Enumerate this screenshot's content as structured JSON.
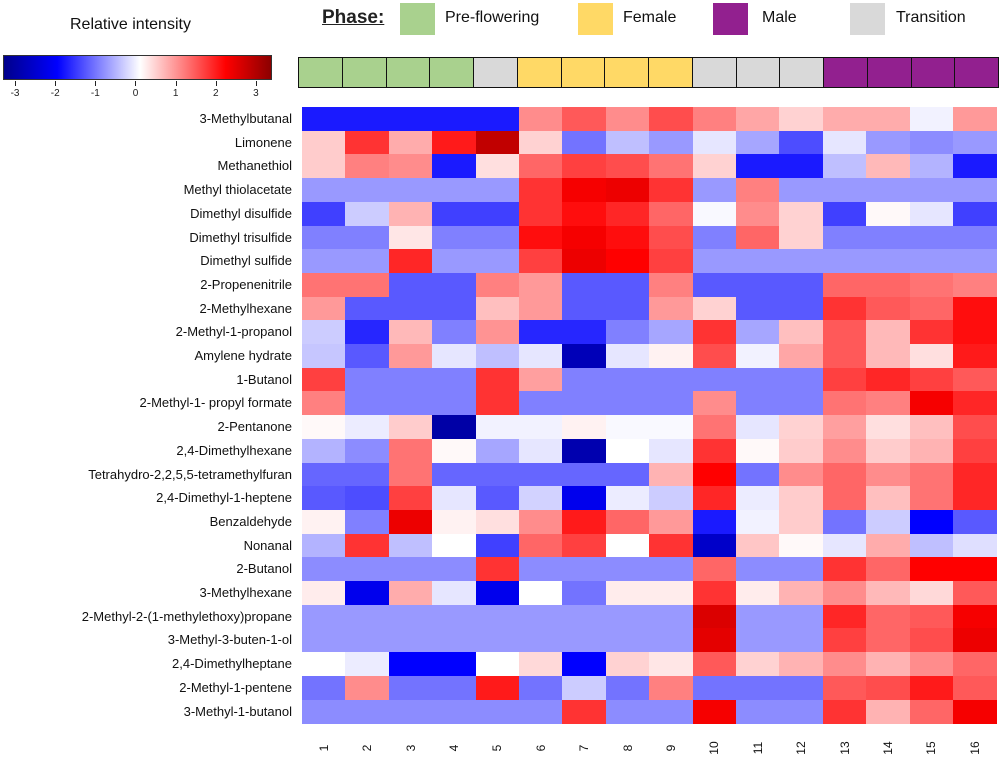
{
  "colorbar": {
    "title": "Relative intensity",
    "ticks": [
      "-3",
      "-2",
      "-1",
      "0",
      "1",
      "2",
      "3"
    ],
    "range": [
      -3.3,
      3.4
    ],
    "colors": {
      "min": "#00008b",
      "neg": "#0000ff",
      "zero": "#ffffff",
      "pos": "#ff0000",
      "max": "#8b0000"
    }
  },
  "phase_legend": {
    "title": "Phase:",
    "items": [
      {
        "label": "Pre-flowering",
        "color": "#a9d18e"
      },
      {
        "label": "Female",
        "color": "#ffd966"
      },
      {
        "label": "Male",
        "color": "#92208f"
      },
      {
        "label": "Transition",
        "color": "#d9d9d9"
      }
    ]
  },
  "chart_data": {
    "type": "heatmap",
    "categories": [
      "1",
      "2",
      "3",
      "4",
      "5",
      "6",
      "7",
      "8",
      "9",
      "10",
      "11",
      "12",
      "13",
      "14",
      "15",
      "16"
    ],
    "column_phases": [
      "Pre-flowering",
      "Pre-flowering",
      "Pre-flowering",
      "Pre-flowering",
      "Transition",
      "Female",
      "Female",
      "Female",
      "Female",
      "Transition",
      "Transition",
      "Transition",
      "Male",
      "Male",
      "Male",
      "Male"
    ],
    "rows": [
      "3-Methylbutanal",
      "Limonene",
      "Methanethiol",
      "Methyl thiolacetate",
      "Dimethyl disulfide",
      "Dimethyl trisulfide",
      "Dimethyl sulfide",
      "2-Propenenitrile",
      "2-Methylhexane",
      "2-Methyl-1-propanol",
      "Amylene hydrate",
      "1-Butanol",
      "2-Methyl-1- propyl formate",
      "2-Pentanone",
      "2,4-Dimethylhexane",
      "Tetrahydro-2,2,5,5-tetramethylfuran",
      "2,4-Dimethyl-1-heptene",
      "Benzaldehyde",
      "Nonanal",
      "2-Butanol",
      "3-Methylhexane",
      "2-Methyl-2-(1-methylethoxy)propane",
      "3-Methyl-3-buten-1-ol",
      "2,4-Dimethylheptane",
      "2-Methyl-1-pentene",
      "3-Methyl-1-butanol"
    ],
    "values": [
      [
        -1.8,
        -1.8,
        -1.8,
        -1.8,
        -1.8,
        0.9,
        1.3,
        0.9,
        1.4,
        1.0,
        0.7,
        0.35,
        0.65,
        0.65,
        -0.1,
        0.8
      ],
      [
        0.4,
        1.6,
        0.65,
        1.8,
        2.7,
        0.35,
        -1.1,
        -0.5,
        -0.8,
        -0.2,
        -0.7,
        -1.4,
        -0.2,
        -0.8,
        -0.9,
        -0.8
      ],
      [
        0.4,
        1.0,
        0.9,
        -1.8,
        0.25,
        1.2,
        1.5,
        1.4,
        1.1,
        0.35,
        -1.8,
        -1.8,
        -0.5,
        0.55,
        -0.6,
        -1.8
      ],
      [
        -0.8,
        -0.8,
        -0.8,
        -0.8,
        -0.8,
        1.6,
        2.1,
        2.2,
        1.6,
        -0.8,
        1.0,
        -0.8,
        -0.8,
        -0.8,
        -0.8,
        -0.8
      ],
      [
        -1.5,
        -0.4,
        0.6,
        -1.5,
        -1.5,
        1.6,
        1.9,
        1.7,
        1.2,
        -0.05,
        0.9,
        0.35,
        -1.5,
        0.05,
        -0.2,
        -1.5
      ],
      [
        -1.0,
        -1.0,
        0.2,
        -1.0,
        -1.0,
        1.9,
        2.1,
        1.9,
        1.4,
        -1.0,
        1.2,
        0.35,
        -1.0,
        -1.0,
        -1.0,
        -1.0
      ],
      [
        -0.8,
        -0.8,
        1.7,
        -0.8,
        -0.8,
        1.5,
        2.2,
        2.0,
        1.5,
        -0.8,
        -0.8,
        -0.8,
        -0.8,
        -0.8,
        -0.8,
        -0.8
      ],
      [
        1.1,
        1.1,
        -1.3,
        -1.3,
        1.0,
        0.8,
        -1.3,
        -1.3,
        1.0,
        -1.3,
        -1.3,
        -1.3,
        1.2,
        1.2,
        1.1,
        1.0
      ],
      [
        0.8,
        -1.3,
        -1.3,
        -1.3,
        0.5,
        0.8,
        -1.3,
        -1.3,
        0.8,
        0.35,
        -1.3,
        -1.3,
        1.6,
        1.3,
        1.2,
        1.9
      ],
      [
        -0.4,
        -1.7,
        0.55,
        -1.0,
        0.85,
        -1.7,
        -1.7,
        -1.0,
        -0.7,
        1.6,
        -0.7,
        0.5,
        1.3,
        0.55,
        1.6,
        1.9
      ],
      [
        -0.45,
        -1.3,
        0.8,
        -0.2,
        -0.5,
        -0.2,
        -2.8,
        -0.2,
        0.1,
        1.4,
        -0.1,
        0.7,
        1.3,
        0.55,
        0.25,
        1.8
      ],
      [
        1.5,
        -1.0,
        -1.0,
        -1.0,
        1.6,
        0.75,
        -1.0,
        -1.0,
        -1.0,
        -1.0,
        -1.0,
        -1.0,
        1.5,
        1.7,
        1.5,
        1.3
      ],
      [
        1.0,
        -1.0,
        -1.0,
        -1.0,
        1.6,
        -1.0,
        -1.0,
        -1.0,
        -1.0,
        0.9,
        -1.0,
        -1.0,
        1.1,
        1.0,
        2.1,
        1.7
      ],
      [
        0.05,
        -0.15,
        0.4,
        -3.0,
        -0.1,
        -0.1,
        0.1,
        -0.05,
        -0.05,
        1.1,
        -0.2,
        0.35,
        0.75,
        0.25,
        0.5,
        1.4
      ],
      [
        -0.6,
        -0.9,
        1.1,
        0.05,
        -0.7,
        -0.2,
        -2.9,
        0.0,
        -0.2,
        1.6,
        0.05,
        0.4,
        0.9,
        0.4,
        0.6,
        1.5
      ],
      [
        -1.2,
        -1.2,
        1.1,
        -1.2,
        -1.2,
        -1.2,
        -1.2,
        -1.2,
        0.6,
        2.0,
        -1.1,
        0.9,
        1.2,
        0.9,
        1.1,
        1.7
      ],
      [
        -1.3,
        -1.4,
        1.5,
        -0.2,
        -1.3,
        -0.35,
        -2.2,
        -0.15,
        -0.4,
        1.7,
        -0.15,
        0.4,
        1.2,
        0.5,
        1.1,
        1.7
      ],
      [
        0.1,
        -1.0,
        2.2,
        0.1,
        0.25,
        0.9,
        1.8,
        1.2,
        0.8,
        -1.8,
        -0.1,
        0.4,
        -1.1,
        -0.4,
        -2.0,
        -1.3
      ],
      [
        -0.6,
        1.6,
        -0.5,
        0.0,
        -1.5,
        1.2,
        1.5,
        0.0,
        1.6,
        -2.6,
        0.45,
        0.05,
        -0.2,
        0.65,
        -0.5,
        -0.25
      ],
      [
        -0.9,
        -0.9,
        -0.9,
        -0.9,
        1.6,
        -0.9,
        -0.9,
        -0.9,
        -0.9,
        1.2,
        -0.9,
        -0.9,
        1.6,
        1.2,
        2.0,
        2.0
      ],
      [
        0.15,
        -2.2,
        0.65,
        -0.2,
        -2.2,
        0.0,
        -1.1,
        0.15,
        0.15,
        1.6,
        0.15,
        0.6,
        0.9,
        0.55,
        0.3,
        1.3
      ],
      [
        -0.8,
        -0.8,
        -0.8,
        -0.8,
        -0.8,
        -0.8,
        -0.8,
        -0.8,
        -0.8,
        2.4,
        -0.8,
        -0.8,
        1.7,
        1.2,
        1.3,
        2.1
      ],
      [
        -0.8,
        -0.8,
        -0.8,
        -0.8,
        -0.8,
        -0.8,
        -0.8,
        -0.8,
        -0.8,
        2.3,
        -0.8,
        -0.8,
        1.5,
        1.2,
        1.4,
        2.2
      ],
      [
        0.0,
        -0.15,
        -2.0,
        -2.0,
        0.0,
        0.3,
        -2.0,
        0.35,
        0.2,
        1.3,
        0.35,
        0.6,
        0.9,
        0.6,
        0.9,
        1.2
      ],
      [
        -1.1,
        0.9,
        -1.1,
        -1.1,
        1.8,
        -1.1,
        -0.4,
        -1.1,
        1.0,
        -1.1,
        -1.1,
        -1.1,
        1.3,
        1.4,
        1.8,
        1.3
      ],
      [
        -0.9,
        -0.9,
        -0.9,
        -0.9,
        -0.9,
        -0.9,
        1.6,
        -0.9,
        -0.9,
        2.1,
        -0.9,
        -0.9,
        1.6,
        0.6,
        1.2,
        2.1
      ]
    ]
  }
}
